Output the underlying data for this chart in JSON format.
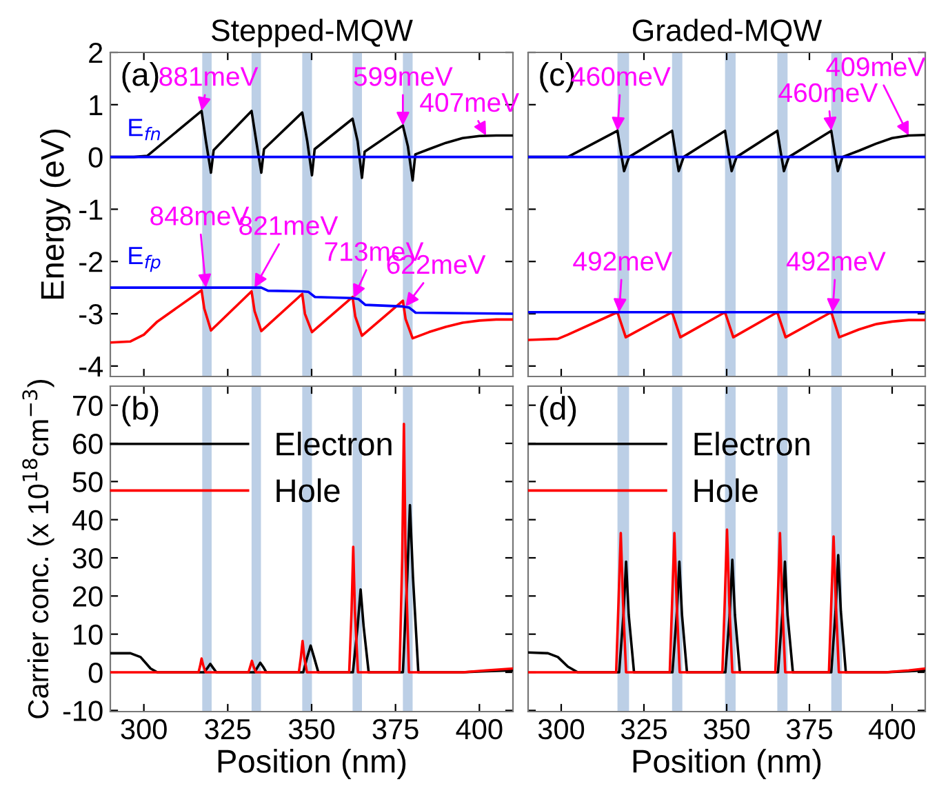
{
  "chart_data": [
    {
      "type": "line",
      "title": "Stepped-MQW",
      "ylabel": "Energy (eV)",
      "xlim": [
        290,
        410
      ],
      "xticks": [
        300,
        325,
        350,
        375,
        400
      ],
      "ylim": [
        -4.2,
        2
      ],
      "yticks": [
        -4,
        -3,
        -2,
        -1,
        0,
        1,
        2
      ],
      "tick_labels": "y",
      "legend": false,
      "bands": [
        {
          "axis": "x",
          "from": 317.4,
          "to": 320.2,
          "color": "#bccfe6"
        },
        {
          "axis": "x",
          "from": 332.1,
          "to": 334.9,
          "color": "#bccfe6"
        },
        {
          "axis": "x",
          "from": 347.2,
          "to": 350.1,
          "color": "#bccfe6"
        },
        {
          "axis": "x",
          "from": 362.2,
          "to": 365.0,
          "color": "#bccfe6"
        },
        {
          "axis": "x",
          "from": 377.2,
          "to": 380.1,
          "color": "#bccfe6"
        }
      ],
      "series": [
        {
          "color": "#000000",
          "x": [
            290,
            297,
            301,
            317.2,
            318.5,
            320,
            320.8,
            332.1,
            333.5,
            335,
            335.8,
            347.2,
            348.7,
            350.1,
            350.9,
            362.2,
            363.7,
            365,
            365.8,
            377.2,
            378.7,
            380.1,
            380.9,
            385,
            390,
            395,
            400,
            405,
            410
          ],
          "values": [
            0,
            0,
            0.02,
            0.88,
            0.3,
            -0.3,
            0.13,
            0.88,
            0.3,
            -0.3,
            0.15,
            0.85,
            0.3,
            -0.35,
            0.15,
            0.73,
            0.3,
            -0.4,
            0.1,
            0.6,
            0.2,
            -0.45,
            0.05,
            0.15,
            0.27,
            0.36,
            0.4,
            0.41,
            0.41
          ]
        },
        {
          "name": "E$_{fn}$",
          "color": "#0000ff",
          "x": [
            290,
            410
          ],
          "values": [
            0,
            0
          ]
        },
        {
          "color": "#ff0000",
          "x": [
            290,
            296,
            300,
            304,
            317.2,
            318,
            320,
            332.1,
            333,
            335,
            347.2,
            348,
            350.1,
            362.2,
            363,
            365,
            377.2,
            378,
            380.1,
            385,
            390,
            395,
            400,
            405,
            410
          ],
          "values": [
            -3.55,
            -3.53,
            -3.4,
            -3.15,
            -2.55,
            -2.9,
            -3.32,
            -2.57,
            -2.95,
            -3.33,
            -2.62,
            -3.0,
            -3.35,
            -2.68,
            -3.05,
            -3.42,
            -2.75,
            -3.1,
            -3.47,
            -3.35,
            -3.25,
            -3.17,
            -3.13,
            -3.11,
            -3.11
          ]
        },
        {
          "name": "E$_{fp}$",
          "color": "#0000ff",
          "x": [
            290,
            335,
            337,
            347,
            349,
            351,
            362,
            364,
            366,
            377,
            379,
            381,
            410
          ],
          "values": [
            -2.5,
            -2.5,
            -2.56,
            -2.57,
            -2.58,
            -2.68,
            -2.7,
            -2.72,
            -2.83,
            -2.86,
            -2.88,
            -2.98,
            -3.0
          ]
        }
      ],
      "annotations": [
        "(a)",
        {
          "text": "881meV",
          "x": 317.2,
          "y": 0.88
        },
        {
          "text": "599meV",
          "x": 377.2,
          "y": 0.6
        },
        {
          "text": "407meV",
          "x": 402,
          "y": 0.41
        },
        {
          "text": "848meV",
          "x": 318.5,
          "y": -2.5
        },
        {
          "text": "821meV",
          "x": 333,
          "y": -2.5
        },
        {
          "text": "713meV",
          "x": 362.5,
          "y": -2.7
        },
        {
          "text": "622meV",
          "x": 378,
          "y": -2.86
        }
      ]
    },
    {
      "type": "line",
      "ylabel": "Carrier conc. (x 10$^{18}$cm$^{−3}$)",
      "xlabel": "Position (nm)",
      "xlim": [
        290,
        410
      ],
      "xticks": [
        300,
        325,
        350,
        375,
        400
      ],
      "ylim": [
        -10.3,
        75
      ],
      "yticks": [
        -10,
        0,
        10,
        20,
        30,
        40,
        50,
        60,
        70
      ],
      "legend": "top left",
      "bands": [
        {
          "axis": "x",
          "from": 317.4,
          "to": 320.2,
          "color": "#bccfe6"
        },
        {
          "axis": "x",
          "from": 332.1,
          "to": 334.9,
          "color": "#bccfe6"
        },
        {
          "axis": "x",
          "from": 347.2,
          "to": 350.1,
          "color": "#bccfe6"
        },
        {
          "axis": "x",
          "from": 362.2,
          "to": 365.0,
          "color": "#bccfe6"
        },
        {
          "axis": "x",
          "from": 377.2,
          "to": 380.1,
          "color": "#bccfe6"
        }
      ],
      "series": [
        {
          "name": "Electron",
          "color": "#000000",
          "x": [
            290,
            296,
            299,
            302,
            304,
            318,
            319,
            319.8,
            320.6,
            321.6,
            333,
            334,
            334.7,
            335.5,
            336.5,
            347.5,
            348.7,
            349.7,
            350.7,
            352,
            362.3,
            363.7,
            364.6,
            365.5,
            367,
            377.2,
            378.5,
            379.3,
            380.2,
            381.8,
            395,
            402,
            410
          ],
          "values": [
            5,
            5,
            4,
            1,
            0,
            0,
            1.2,
            2.2,
            1.2,
            0,
            0,
            1.5,
            2.5,
            1.5,
            0,
            0,
            4,
            7,
            4,
            0,
            0,
            12,
            21.7,
            12,
            0,
            0,
            25,
            43.8,
            25,
            0,
            0,
            0.3,
            0.5
          ]
        },
        {
          "name": "Hole",
          "color": "#ff0000",
          "x": [
            290,
            316.3,
            316.8,
            317.2,
            317.7,
            318.4,
            331.2,
            331.7,
            332.2,
            332.7,
            333.4,
            346.2,
            346.8,
            347.3,
            347.8,
            348.6,
            361.2,
            361.9,
            362.4,
            362.9,
            363.8,
            376.2,
            377,
            377.5,
            378,
            379,
            395,
            402,
            410
          ],
          "values": [
            0,
            0,
            1.8,
            3.6,
            1.8,
            0,
            0,
            1.5,
            3,
            1.5,
            0,
            0,
            4,
            8.2,
            4,
            0,
            0,
            16,
            32.9,
            16,
            0,
            0,
            30,
            65.1,
            30,
            0,
            0,
            0.5,
            1
          ]
        }
      ],
      "annotations": [
        "(b)"
      ]
    },
    {
      "type": "line",
      "title": "Graded-MQW",
      "xlim": [
        290,
        410
      ],
      "xticks": [
        300,
        325,
        350,
        375,
        400
      ],
      "ylim": [
        -4.2,
        2
      ],
      "yticks": [
        -4,
        -3,
        -2,
        -1,
        0,
        1,
        2
      ],
      "tick_labels": false,
      "legend": false,
      "bands": [
        {
          "axis": "x",
          "from": 317.0,
          "to": 320.5,
          "color": "#bccfe6"
        },
        {
          "axis": "x",
          "from": 333.5,
          "to": 336.6,
          "color": "#bccfe6"
        },
        {
          "axis": "x",
          "from": 349.5,
          "to": 352.7,
          "color": "#bccfe6"
        },
        {
          "axis": "x",
          "from": 365.3,
          "to": 368.4,
          "color": "#bccfe6"
        },
        {
          "axis": "x",
          "from": 381.6,
          "to": 384.8,
          "color": "#bccfe6"
        }
      ],
      "series": [
        {
          "color": "#000000",
          "x": [
            290,
            302,
            317,
            318,
            319,
            320.5,
            333.5,
            334.5,
            335.5,
            337,
            349.5,
            350.5,
            351.5,
            353,
            365.3,
            366.3,
            367.3,
            368.8,
            381.6,
            382.6,
            383.6,
            385,
            390,
            395,
            400,
            405,
            410
          ],
          "values": [
            0,
            0,
            0.5,
            0.1,
            -0.27,
            0,
            0.5,
            0.1,
            -0.27,
            0,
            0.5,
            0.1,
            -0.27,
            0,
            0.5,
            0.1,
            -0.27,
            0,
            0.5,
            0.1,
            -0.27,
            0,
            0.12,
            0.25,
            0.36,
            0.41,
            0.42
          ]
        },
        {
          "color": "#0000ff",
          "x": [
            290,
            410
          ],
          "values": [
            0,
            0
          ]
        },
        {
          "color": "#ff0000",
          "x": [
            290,
            299,
            302,
            317,
            319.5,
            333.5,
            336,
            349.5,
            352,
            365.3,
            367.8,
            381.6,
            384,
            390,
            395,
            400,
            405,
            410
          ],
          "values": [
            -3.5,
            -3.48,
            -3.4,
            -2.97,
            -3.45,
            -2.97,
            -3.45,
            -2.97,
            -3.45,
            -2.97,
            -3.45,
            -2.97,
            -3.45,
            -3.3,
            -3.2,
            -3.15,
            -3.12,
            -3.12
          ]
        },
        {
          "color": "#0000ff",
          "x": [
            290,
            410
          ],
          "values": [
            -2.97,
            -2.97
          ]
        }
      ],
      "annotations": [
        "(c)",
        {
          "text": "460meV",
          "x": 317,
          "y": 0.5
        },
        {
          "text": "460meV",
          "x": 381.6,
          "y": 0.5
        },
        {
          "text": "409meV",
          "x": 405,
          "y": 0.41
        },
        {
          "text": "492meV",
          "x": 317.5,
          "y": -2.97
        },
        {
          "text": "492meV",
          "x": 382,
          "y": -2.97
        }
      ]
    },
    {
      "type": "line",
      "xlabel": "Position (nm)",
      "xlim": [
        290,
        410
      ],
      "xticks": [
        300,
        325,
        350,
        375,
        400
      ],
      "ylim": [
        -10.3,
        75
      ],
      "yticks": [
        -10,
        0,
        10,
        20,
        30,
        40,
        50,
        60,
        70
      ],
      "tick_labels": "x",
      "legend": "top left",
      "bands": [
        {
          "axis": "x",
          "from": 317.0,
          "to": 320.5,
          "color": "#bccfe6"
        },
        {
          "axis": "x",
          "from": 333.5,
          "to": 336.6,
          "color": "#bccfe6"
        },
        {
          "axis": "x",
          "from": 349.5,
          "to": 352.7,
          "color": "#bccfe6"
        },
        {
          "axis": "x",
          "from": 365.3,
          "to": 368.4,
          "color": "#bccfe6"
        },
        {
          "axis": "x",
          "from": 381.6,
          "to": 384.8,
          "color": "#bccfe6"
        }
      ],
      "series": [
        {
          "name": "Electron",
          "color": "#000000",
          "x": [
            290,
            296,
            299,
            302,
            305,
            317.5,
            318.8,
            319.6,
            320.4,
            322,
            333.6,
            334.9,
            335.7,
            336.5,
            338,
            349.6,
            350.9,
            351.7,
            352.5,
            354,
            365.5,
            366.8,
            367.6,
            368.4,
            370,
            381.6,
            382.9,
            383.7,
            384.5,
            386,
            398,
            405,
            410
          ],
          "values": [
            5.2,
            5,
            4,
            1.5,
            0,
            0,
            15,
            29,
            15,
            0,
            0,
            15,
            29,
            15,
            0,
            0,
            15,
            29.5,
            15,
            0,
            0,
            15,
            29,
            15,
            0,
            0,
            16,
            30.7,
            16,
            0,
            0,
            0.3,
            0.5
          ]
        },
        {
          "name": "Hole",
          "color": "#ff0000",
          "x": [
            290,
            316.6,
            317.3,
            318,
            318.7,
            319.6,
            332.8,
            333.5,
            334.2,
            334.9,
            335.8,
            348.7,
            349.4,
            350.1,
            350.8,
            351.7,
            364.7,
            365.4,
            366.1,
            366.8,
            367.7,
            380.9,
            381.6,
            382.3,
            383,
            383.9,
            398,
            405,
            410
          ],
          "values": [
            0,
            0,
            18,
            36.5,
            18,
            0,
            0,
            18,
            36.5,
            18,
            0,
            0,
            18,
            37.4,
            18,
            0,
            0,
            18,
            36.5,
            18,
            0,
            0,
            18,
            35.6,
            18,
            0,
            0,
            0.5,
            1
          ]
        }
      ],
      "annotations": [
        "(d)"
      ]
    }
  ]
}
